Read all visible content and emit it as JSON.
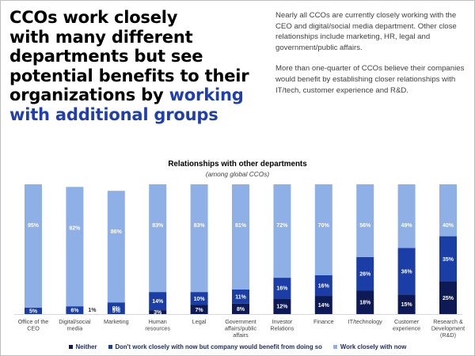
{
  "headline": {
    "lines": [
      "CCOs work closely",
      "with many different",
      "departments but see",
      "potential benefits to their",
      "organizations by"
    ],
    "accent_first": "working",
    "accent_second": "with additional groups",
    "accent_color": "#1f3fb0"
  },
  "intro": {
    "paragraph1": "Nearly all CCOs are currently closely working with the CEO and digital/social media department. Other close relationships include marketing, HR, legal and government/public affairs.",
    "paragraph2": "More than one-quarter of CCOs believe their companies would benefit by establishing closer relationships with IT/tech, customer experience and R&D."
  },
  "chart_data": {
    "type": "bar",
    "stacked": true,
    "percent_stacked": true,
    "title": "Relationships with other departments",
    "subtitle": "(among global CCOs)",
    "categories": [
      [
        "Office of the",
        "CEO"
      ],
      [
        "Digital/social",
        "media"
      ],
      [
        "Marketing"
      ],
      [
        "Human",
        "resources"
      ],
      [
        "Legal"
      ],
      [
        "Government",
        "affairs/public",
        "affairs"
      ],
      [
        "Investor",
        "Relations"
      ],
      [
        "Finance"
      ],
      [
        "IT/technology"
      ],
      [
        "Customer",
        "experience"
      ],
      [
        "Research &",
        "Development",
        "(R&D)"
      ]
    ],
    "series": [
      {
        "name": "Neither",
        "color": "#0e1a55",
        "values": [
          null,
          null,
          null,
          3,
          7,
          8,
          12,
          14,
          18,
          15,
          25
        ],
        "labels": [
          "",
          "",
          "",
          "3%",
          "7%",
          "8%",
          "12%",
          "14%",
          "18%",
          "15%",
          "25%"
        ]
      },
      {
        "name": "Don't work closely with now but company would benefit from doing so",
        "color": "#1a3ea6",
        "values": [
          5,
          6,
          9,
          14,
          10,
          11,
          16,
          16,
          26,
          36,
          35
        ],
        "labels": [
          "5%",
          "6%",
          "9%",
          "14%",
          "10%",
          "11%",
          "16%",
          "16%",
          "26%",
          "36%",
          "35%"
        ]
      },
      {
        "name": "Work closely with now",
        "color": "#8fb0e6",
        "values": [
          95,
          92,
          86,
          83,
          83,
          81,
          72,
          70,
          56,
          49,
          40
        ],
        "labels": [
          "95%",
          "92%",
          "86%",
          "83%",
          "83%",
          "81%",
          "72%",
          "70%",
          "56%",
          "49%",
          "40%"
        ]
      }
    ],
    "extra_labels": [
      {
        "category_index": 1,
        "text": "1%"
      },
      {
        "category_index": 2,
        "text": "5%"
      }
    ],
    "ylim": [
      0,
      100
    ],
    "legend_position": "bottom",
    "grid": false
  }
}
